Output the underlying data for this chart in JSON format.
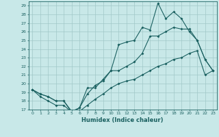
{
  "xlabel": "Humidex (Indice chaleur)",
  "bg_color": "#c8e8e8",
  "grid_color": "#a0c8c8",
  "line_color": "#1a6060",
  "xlim": [
    -0.5,
    23.5
  ],
  "ylim": [
    17,
    29.5
  ],
  "yticks": [
    17,
    18,
    19,
    20,
    21,
    22,
    23,
    24,
    25,
    26,
    27,
    28,
    29
  ],
  "xticks": [
    0,
    1,
    2,
    3,
    4,
    5,
    6,
    7,
    8,
    9,
    10,
    11,
    12,
    13,
    14,
    15,
    16,
    17,
    18,
    19,
    20,
    21,
    22,
    23
  ],
  "line1_x": [
    0,
    1,
    2,
    3,
    4,
    5,
    6,
    7,
    8,
    9,
    10,
    11,
    12,
    13,
    14,
    15,
    16,
    17,
    18,
    19,
    20,
    21,
    22,
    23
  ],
  "line1_y": [
    19.3,
    18.8,
    18.5,
    18.0,
    18.0,
    16.7,
    17.2,
    19.5,
    19.5,
    20.5,
    21.5,
    24.5,
    24.8,
    25.0,
    26.5,
    26.2,
    29.3,
    27.5,
    28.3,
    27.5,
    26.0,
    25.0,
    22.8,
    21.5
  ],
  "line2_x": [
    0,
    1,
    2,
    3,
    4,
    5,
    6,
    7,
    8,
    9,
    10,
    11,
    12,
    13,
    14,
    15,
    16,
    17,
    18,
    19,
    20,
    21,
    22,
    23
  ],
  "line2_y": [
    19.3,
    18.8,
    18.5,
    18.0,
    18.0,
    16.8,
    17.2,
    18.8,
    19.8,
    20.3,
    21.5,
    21.5,
    22.0,
    22.5,
    23.5,
    25.5,
    25.5,
    26.0,
    26.5,
    26.3,
    26.3,
    25.0,
    22.8,
    21.5
  ],
  "line3_x": [
    0,
    1,
    2,
    3,
    4,
    5,
    6,
    7,
    8,
    9,
    10,
    11,
    12,
    13,
    14,
    15,
    16,
    17,
    18,
    19,
    20,
    21,
    22,
    23
  ],
  "line3_y": [
    19.3,
    18.5,
    18.0,
    17.5,
    17.5,
    16.7,
    16.8,
    17.5,
    18.2,
    18.8,
    19.5,
    20.0,
    20.3,
    20.5,
    21.0,
    21.5,
    22.0,
    22.3,
    22.8,
    23.0,
    23.5,
    23.8,
    21.0,
    21.5
  ]
}
